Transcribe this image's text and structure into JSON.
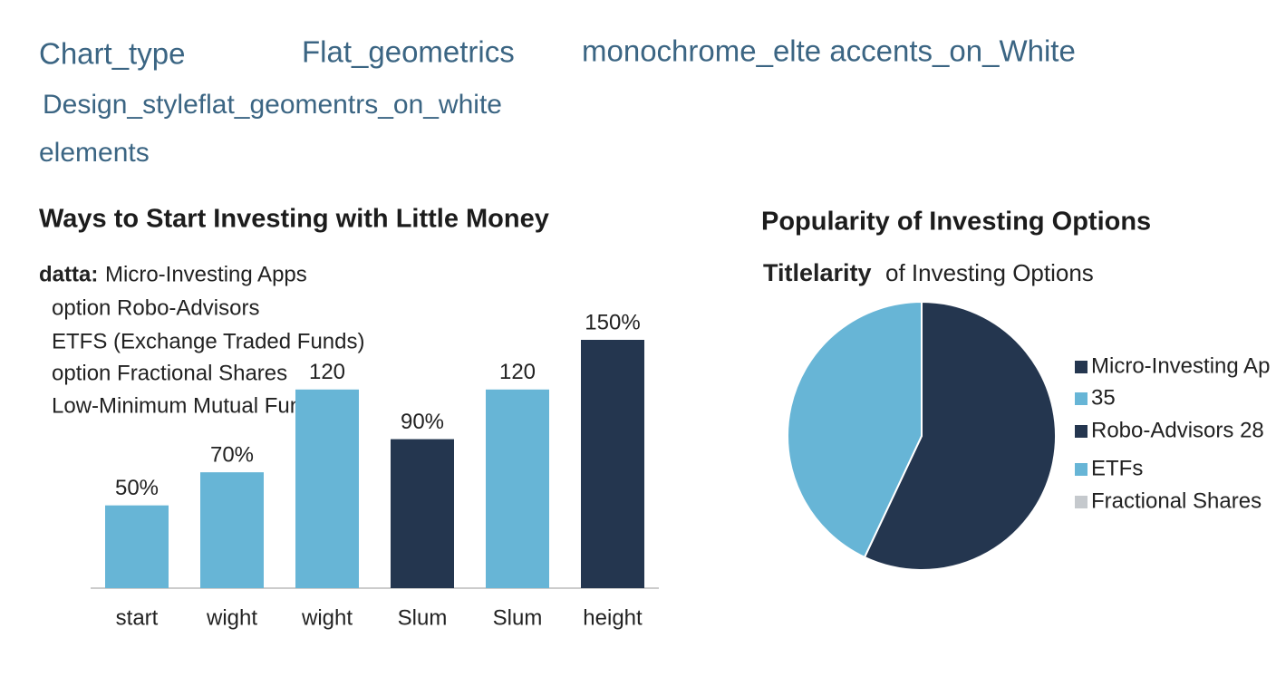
{
  "header": {
    "items": [
      "Chart_type",
      "Flat_geometrics",
      "monochrome_elte accents_on_White",
      "Design_styleflat_geomentrs_on_white",
      "elements"
    ]
  },
  "chart_data": [
    {
      "type": "bar",
      "title": "Ways to Start Investing with Little Money",
      "annotation_label": "datta:",
      "annotation_lines": [
        "Micro-Investing Apps",
        "option Robo-Advisors",
        "ETFS  (Exchange Traded Funds)",
        "option Fractional Shares",
        "Low-Minimum Mutual Funds"
      ],
      "categories": [
        "start",
        "wight",
        "wight",
        "Slum",
        "Slum",
        "height"
      ],
      "values": [
        50,
        70,
        120,
        90,
        120,
        150
      ],
      "value_labels": [
        "50%",
        "70%",
        "120",
        "90%",
        "120",
        "150%"
      ],
      "colors": [
        "#67b5d6",
        "#67b5d6",
        "#67b5d6",
        "#24364f",
        "#67b5d6",
        "#24364f"
      ]
    },
    {
      "type": "pie",
      "title": "Popularity of Investing Options",
      "subtitle": [
        "Titlelarity",
        "of Investing Options"
      ],
      "values": [
        57,
        43
      ],
      "colors": [
        "#24364f",
        "#67b5d6"
      ],
      "legend": [
        {
          "label": "Micro-Investing Ap",
          "color": "#24364f"
        },
        {
          "label": "35",
          "color": "#67b5d6"
        },
        {
          "label": "Robo-Advisors 28",
          "color": "#24364f"
        },
        {
          "label": "ETFs",
          "color": "#67b5d6"
        },
        {
          "label": "Fractional Shares",
          "color": "#c5c9cd"
        }
      ]
    }
  ]
}
